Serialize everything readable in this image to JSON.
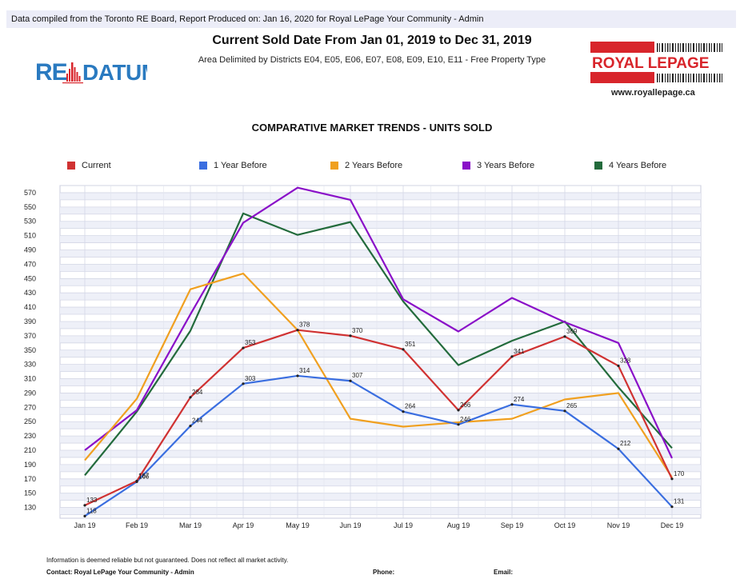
{
  "header": {
    "banner": "Data compiled from the Toronto RE Board, Report Produced on: Jan 16, 2020 for Royal LePage Your Community -  Admin",
    "title": "Current Sold Date From Jan 01, 2019 to Dec 31, 2019",
    "subtitle": "Area Delimited by Districts E04, E05, E06, E07, E08, E09, E10, E11 - Free Property Type"
  },
  "logos": {
    "redatum": "RE DATUM",
    "royal_lepage": "ROYAL LEPAGE",
    "royal_lepage_url": "www.royallepage.ca"
  },
  "colors": {
    "current": "#d03232",
    "one_year": "#3a6ee0",
    "two_years": "#f0a020",
    "three_years": "#8a10c8",
    "four_years": "#236b3c",
    "redatum_blue": "#2a7ac0",
    "rlp_red": "#d8252b"
  },
  "chart_data": {
    "type": "line",
    "title": "COMPARATIVE MARKET TRENDS - UNITS SOLD",
    "categories": [
      "Jan 19",
      "Feb 19",
      "Mar 19",
      "Apr 19",
      "May 19",
      "Jun 19",
      "Jul 19",
      "Aug 19",
      "Sep 19",
      "Oct 19",
      "Nov 19",
      "Dec 19"
    ],
    "y_ticks": [
      130,
      150,
      170,
      190,
      210,
      230,
      250,
      270,
      290,
      310,
      330,
      350,
      370,
      390,
      410,
      430,
      450,
      470,
      490,
      510,
      530,
      550,
      570
    ],
    "ylim": [
      115,
      580
    ],
    "grid": true,
    "legend_position": "top",
    "series": [
      {
        "name": "Current",
        "key": "current",
        "labels": true,
        "values": [
          133,
          167,
          284,
          353,
          378,
          370,
          351,
          266,
          341,
          369,
          328,
          170
        ]
      },
      {
        "name": "1 Year Before",
        "key": "one_year",
        "labels": true,
        "values": [
          118,
          166,
          244,
          303,
          314,
          307,
          264,
          246,
          274,
          265,
          212,
          131
        ]
      },
      {
        "name": "2 Years Before",
        "key": "two_years",
        "labels": false,
        "values": [
          196,
          282,
          435,
          457,
          378,
          254,
          243,
          249,
          254,
          281,
          290,
          172
        ]
      },
      {
        "name": "3 Years Before",
        "key": "three_years",
        "labels": false,
        "values": [
          210,
          266,
          400,
          528,
          577,
          560,
          421,
          376,
          423,
          389,
          360,
          199
        ]
      },
      {
        "name": "4 Years Before",
        "key": "four_years",
        "labels": false,
        "values": [
          175,
          264,
          377,
          541,
          511,
          529,
          418,
          329,
          363,
          390,
          298,
          213
        ]
      }
    ]
  },
  "footer": {
    "disclaimer": "Information is deemed reliable but not guaranteed. Does not reflect all market activity.",
    "contact": "Contact: Royal LePage Your Community -  Admin",
    "phone": "Phone:",
    "email": "Email:"
  }
}
